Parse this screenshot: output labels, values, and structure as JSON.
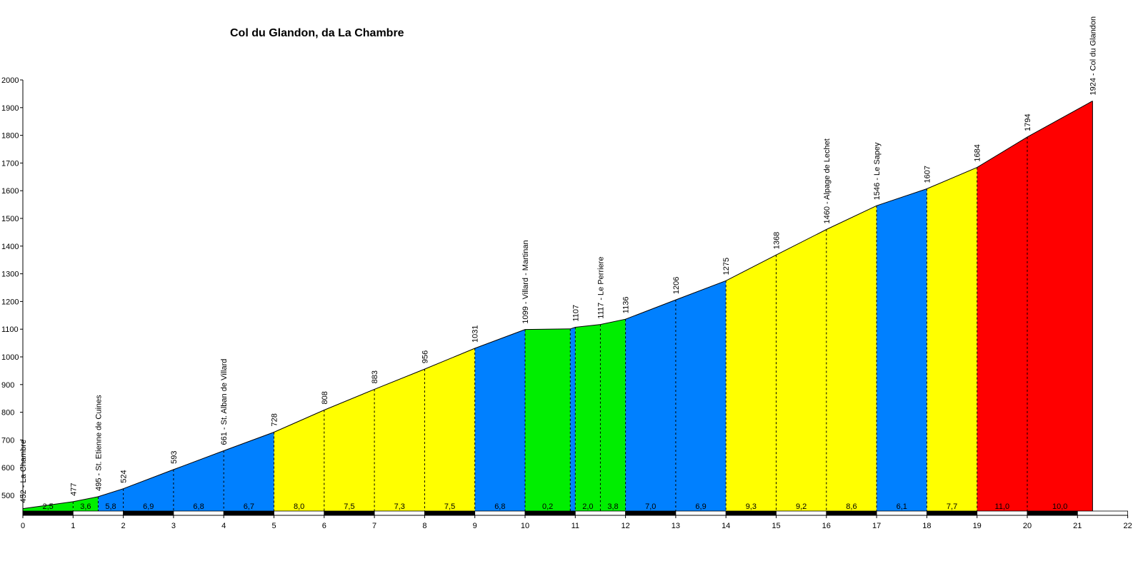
{
  "chart_data": {
    "type": "area",
    "title": "Col du Glandon, da La Chambre",
    "xlabel": "",
    "ylabel": "",
    "xlim": [
      0,
      22
    ],
    "ylim": [
      420,
      2000
    ],
    "x_ticks": [
      "0",
      "1",
      "2",
      "3",
      "4",
      "5",
      "6",
      "7",
      "8",
      "9",
      "10",
      "11",
      "12",
      "13",
      "14",
      "15",
      "16",
      "17",
      "18",
      "19",
      "20",
      "21",
      "22"
    ],
    "y_ticks": [
      "500",
      "600",
      "700",
      "800",
      "900",
      "1000",
      "1100",
      "1200",
      "1300",
      "1400",
      "1500",
      "1600",
      "1700",
      "1800",
      "1900",
      "2000"
    ],
    "y_tick_values": [
      500,
      600,
      700,
      800,
      900,
      1000,
      1100,
      1200,
      1300,
      1400,
      1500,
      1600,
      1700,
      1800,
      1900,
      2000
    ],
    "profile_points": [
      {
        "x": 0,
        "y": 452,
        "label": "452 - La Chambre"
      },
      {
        "x": 1,
        "y": 477,
        "label": "477"
      },
      {
        "x": 1.5,
        "y": 495,
        "label": "495 - St. Etienne de Cuines"
      },
      {
        "x": 2,
        "y": 524,
        "label": "524"
      },
      {
        "x": 3,
        "y": 593,
        "label": "593"
      },
      {
        "x": 4,
        "y": 661,
        "label": "661 - St. Alban de Villard"
      },
      {
        "x": 5,
        "y": 728,
        "label": "728"
      },
      {
        "x": 6,
        "y": 808,
        "label": "808"
      },
      {
        "x": 7,
        "y": 883,
        "label": "883"
      },
      {
        "x": 8,
        "y": 956,
        "label": "956"
      },
      {
        "x": 9,
        "y": 1031,
        "label": "1031"
      },
      {
        "x": 10,
        "y": 1099,
        "label": "1099 - Villard - Martinan"
      },
      {
        "x": 10.9,
        "y": 1101,
        "label": ""
      },
      {
        "x": 11,
        "y": 1107,
        "label": "1107"
      },
      {
        "x": 11.5,
        "y": 1117,
        "label": "1117 - Le Perriere"
      },
      {
        "x": 12,
        "y": 1136,
        "label": "1136"
      },
      {
        "x": 13,
        "y": 1206,
        "label": "1206"
      },
      {
        "x": 14,
        "y": 1275,
        "label": "1275"
      },
      {
        "x": 15,
        "y": 1368,
        "label": "1368"
      },
      {
        "x": 16,
        "y": 1460,
        "label": "1460 - Alpage de Lechet"
      },
      {
        "x": 17,
        "y": 1546,
        "label": "1546 - Le Sapey"
      },
      {
        "x": 18,
        "y": 1607,
        "label": "1607"
      },
      {
        "x": 19,
        "y": 1684,
        "label": "1684"
      },
      {
        "x": 20,
        "y": 1794,
        "label": "1794"
      },
      {
        "x": 21.3,
        "y": 1924,
        "label": "1924 - Col du Glandon"
      }
    ],
    "segments": [
      {
        "from": 0,
        "to": 1,
        "grade": "2,5",
        "color": "green"
      },
      {
        "from": 1,
        "to": 1.5,
        "grade": "3,6",
        "color": "green"
      },
      {
        "from": 1.5,
        "to": 2,
        "grade": "5,8",
        "color": "blue"
      },
      {
        "from": 2,
        "to": 3,
        "grade": "6,9",
        "color": "blue"
      },
      {
        "from": 3,
        "to": 4,
        "grade": "6,8",
        "color": "blue"
      },
      {
        "from": 4,
        "to": 5,
        "grade": "6,7",
        "color": "blue"
      },
      {
        "from": 5,
        "to": 6,
        "grade": "8,0",
        "color": "yellow"
      },
      {
        "from": 6,
        "to": 7,
        "grade": "7,5",
        "color": "yellow"
      },
      {
        "from": 7,
        "to": 8,
        "grade": "7,3",
        "color": "yellow"
      },
      {
        "from": 8,
        "to": 9,
        "grade": "7,5",
        "color": "yellow"
      },
      {
        "from": 9,
        "to": 10,
        "grade": "6,8",
        "color": "blue"
      },
      {
        "from": 10,
        "to": 10.9,
        "grade": "0,2",
        "color": "green"
      },
      {
        "from": 10.9,
        "to": 11,
        "grade": "",
        "color": "blue"
      },
      {
        "from": 11,
        "to": 11.5,
        "grade": "2,0",
        "color": "green"
      },
      {
        "from": 11.5,
        "to": 12,
        "grade": "3,8",
        "color": "green"
      },
      {
        "from": 12,
        "to": 13,
        "grade": "7,0",
        "color": "blue"
      },
      {
        "from": 13,
        "to": 14,
        "grade": "6,9",
        "color": "blue"
      },
      {
        "from": 14,
        "to": 15,
        "grade": "9,3",
        "color": "yellow"
      },
      {
        "from": 15,
        "to": 16,
        "grade": "9,2",
        "color": "yellow"
      },
      {
        "from": 16,
        "to": 17,
        "grade": "8,6",
        "color": "yellow"
      },
      {
        "from": 17,
        "to": 18,
        "grade": "6,1",
        "color": "blue"
      },
      {
        "from": 18,
        "to": 19,
        "grade": "7,7",
        "color": "yellow"
      },
      {
        "from": 19,
        "to": 20,
        "grade": "11,0",
        "color": "red"
      },
      {
        "from": 20,
        "to": 21.3,
        "grade": "10,0",
        "color": "red"
      }
    ],
    "colors": {
      "green": "#00ee00",
      "blue": "#0080ff",
      "yellow": "#ffff00",
      "red": "#ff0000"
    },
    "grid": false,
    "legend": "none"
  }
}
